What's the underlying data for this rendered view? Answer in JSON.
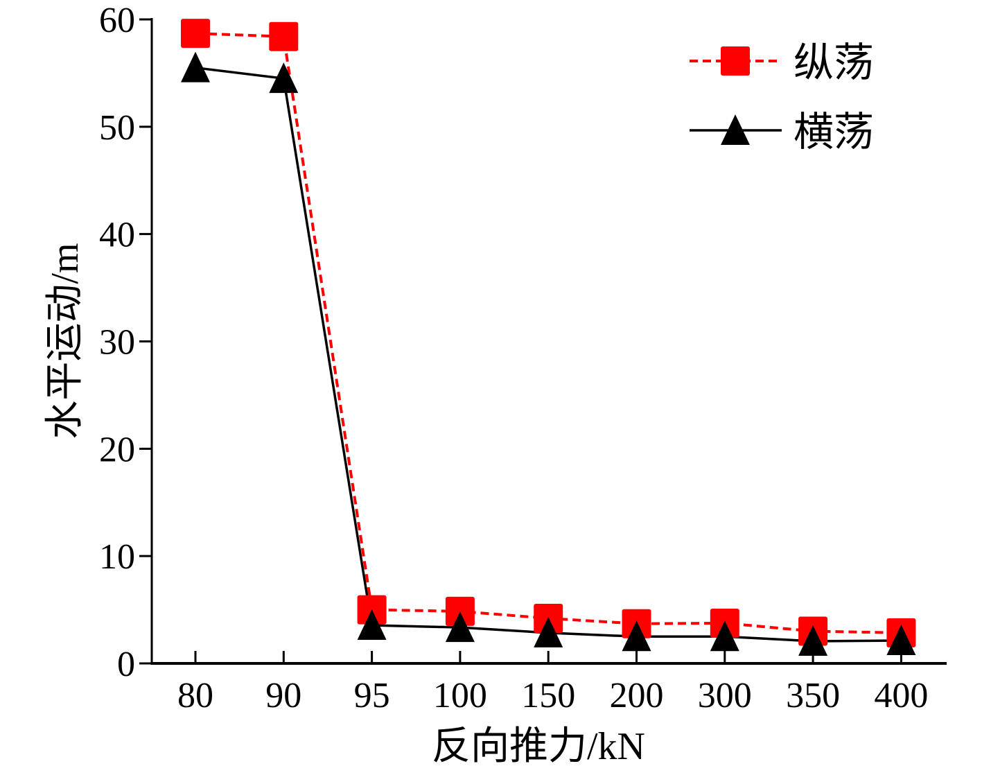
{
  "chart_data": {
    "type": "line",
    "xlabel": "反向推力/kN",
    "ylabel": "水平运动/m",
    "categories": [
      "80",
      "90",
      "95",
      "100",
      "150",
      "200",
      "300",
      "350",
      "400"
    ],
    "ylim": [
      0,
      60
    ],
    "yticks": [
      "0",
      "10",
      "20",
      "30",
      "40",
      "50",
      "60"
    ],
    "grid": false,
    "legend_position": "top-right",
    "series": [
      {
        "name": "纵荡",
        "color": "#ff0000",
        "line": "dashed",
        "marker": "square",
        "values": [
          58.7,
          58.4,
          5.0,
          4.85,
          4.2,
          3.7,
          3.75,
          3.0,
          2.85
        ]
      },
      {
        "name": "横荡",
        "color": "#000000",
        "line": "solid",
        "marker": "triangle",
        "values": [
          55.5,
          54.5,
          3.55,
          3.35,
          2.85,
          2.5,
          2.5,
          2.07,
          2.13
        ]
      }
    ]
  }
}
